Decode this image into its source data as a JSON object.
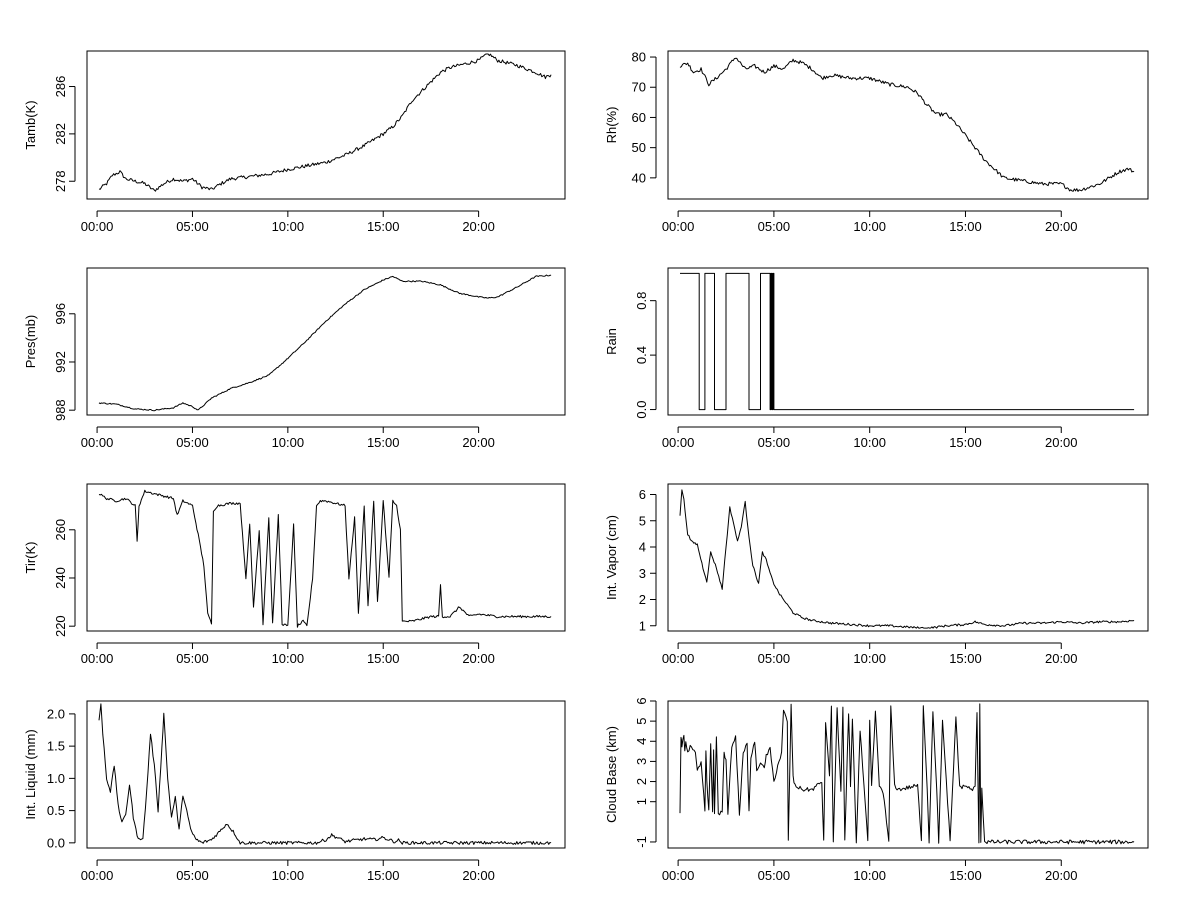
{
  "chart_data": [
    {
      "type": "line",
      "ylabel": "Tamb(K)",
      "xlim": [
        0,
        24
      ],
      "ylim": [
        276.5,
        289.0
      ],
      "x_ticks": [
        0,
        5,
        10,
        15,
        20
      ],
      "x_tick_labels": [
        "00:00",
        "05:00",
        "10:00",
        "15:00",
        "20:00"
      ],
      "y_ticks": [
        278,
        282,
        286
      ],
      "y_tick_labels": [
        "278",
        "282",
        "286"
      ],
      "y_labels_rotated": true,
      "noise": 0.15,
      "x": [
        0.1,
        0.5,
        0.8,
        1.2,
        1.5,
        2.0,
        2.5,
        3.0,
        3.5,
        4.0,
        4.5,
        5.0,
        5.5,
        6.0,
        6.5,
        7.0,
        8.0,
        9.0,
        10.0,
        11.0,
        12.0,
        13.0,
        14.0,
        15.0,
        15.5,
        16.0,
        16.5,
        17.0,
        17.5,
        18.0,
        18.5,
        19.0,
        19.5,
        20.0,
        20.5,
        21.0,
        21.5,
        22.0,
        22.5,
        23.0,
        23.5,
        23.8
      ],
      "y": [
        277.3,
        277.8,
        278.5,
        278.8,
        278.2,
        278.0,
        277.8,
        277.2,
        277.8,
        278.2,
        278.0,
        278.2,
        277.5,
        277.3,
        277.8,
        278.2,
        278.4,
        278.6,
        279.0,
        279.3,
        279.6,
        280.2,
        281.0,
        282.0,
        282.6,
        283.5,
        284.8,
        285.6,
        286.4,
        287.2,
        287.6,
        287.8,
        288.0,
        288.2,
        288.8,
        288.2,
        288.0,
        287.8,
        287.5,
        287.2,
        286.8,
        287.0
      ]
    },
    {
      "type": "line",
      "ylabel": "Rh(%)",
      "xlim": [
        0,
        24
      ],
      "ylim": [
        33,
        82
      ],
      "x_ticks": [
        0,
        5,
        10,
        15,
        20
      ],
      "x_tick_labels": [
        "00:00",
        "05:00",
        "10:00",
        "15:00",
        "20:00"
      ],
      "y_ticks": [
        40,
        50,
        60,
        70,
        80
      ],
      "y_tick_labels": [
        "40",
        "50",
        "60",
        "70",
        "80"
      ],
      "y_labels_rotated": false,
      "noise": 0.6,
      "x": [
        0.1,
        0.5,
        0.8,
        1.2,
        1.6,
        2.0,
        2.5,
        3.0,
        3.5,
        4.0,
        4.5,
        5.0,
        5.5,
        6.0,
        6.5,
        7.0,
        7.5,
        8.0,
        9.0,
        10.0,
        11.0,
        12.0,
        12.5,
        13.0,
        13.5,
        14.0,
        14.5,
        15.0,
        15.5,
        16.0,
        16.5,
        17.0,
        18.0,
        19.0,
        20.0,
        20.5,
        21.0,
        21.5,
        22.0,
        22.5,
        23.0,
        23.5,
        23.8
      ],
      "y": [
        77,
        78,
        75,
        76,
        71,
        73,
        76,
        80,
        76,
        77,
        75,
        77,
        76,
        79,
        78,
        76,
        73,
        74,
        73,
        73,
        71,
        70,
        68,
        64,
        61,
        61,
        58,
        54,
        50,
        46,
        43,
        40,
        39,
        38,
        38,
        36,
        36,
        37,
        38,
        40,
        42,
        43,
        42
      ]
    },
    {
      "type": "line",
      "ylabel": "Pres(mb)",
      "xlim": [
        0,
        24
      ],
      "ylim": [
        987.6,
        999.8
      ],
      "x_ticks": [
        0,
        5,
        10,
        15,
        20
      ],
      "x_tick_labels": [
        "00:00",
        "05:00",
        "10:00",
        "15:00",
        "20:00"
      ],
      "y_ticks": [
        988,
        992,
        996
      ],
      "y_tick_labels": [
        "988",
        "992",
        "996"
      ],
      "y_labels_rotated": true,
      "noise": 0.05,
      "x": [
        0.1,
        1.0,
        2.0,
        3.0,
        4.0,
        4.5,
        5.0,
        5.3,
        6.0,
        7.0,
        8.0,
        9.0,
        10.0,
        11.0,
        12.0,
        13.0,
        14.0,
        15.0,
        15.5,
        16.0,
        17.0,
        18.0,
        19.0,
        20.0,
        20.5,
        21.0,
        22.0,
        23.0,
        23.8
      ],
      "y": [
        988.6,
        988.5,
        988.1,
        988.0,
        988.2,
        988.6,
        988.3,
        988.0,
        989.0,
        989.8,
        990.3,
        990.9,
        992.3,
        993.8,
        995.4,
        996.8,
        998.0,
        998.8,
        999.1,
        998.7,
        998.7,
        998.4,
        997.7,
        997.4,
        997.3,
        997.4,
        998.2,
        999.1,
        999.2
      ]
    },
    {
      "type": "line",
      "ylabel": "Rain",
      "xlim": [
        0,
        24
      ],
      "ylim": [
        -0.04,
        1.04
      ],
      "x_ticks": [
        0,
        5,
        10,
        15,
        20
      ],
      "x_tick_labels": [
        "00:00",
        "05:00",
        "10:00",
        "15:00",
        "20:00"
      ],
      "y_ticks": [
        0.0,
        0.4,
        0.8
      ],
      "y_tick_labels": [
        "0.0",
        "0.4",
        "0.8"
      ],
      "y_labels_rotated": true,
      "noise": 0,
      "x": [
        0.1,
        1.1,
        1.1,
        1.4,
        1.4,
        1.9,
        1.9,
        2.5,
        2.5,
        3.7,
        3.7,
        4.3,
        4.3,
        4.8,
        4.8,
        4.85,
        4.85,
        4.9,
        4.9,
        4.95,
        4.95,
        5.0,
        5.0,
        23.8
      ],
      "y": [
        1,
        1,
        0,
        0,
        1,
        1,
        0,
        0,
        1,
        1,
        0,
        0,
        1,
        1,
        0,
        0,
        1,
        1,
        0,
        0,
        1,
        1,
        0,
        0
      ]
    },
    {
      "type": "line",
      "ylabel": "Tir(K)",
      "xlim": [
        0,
        24
      ],
      "ylim": [
        218,
        279
      ],
      "x_ticks": [
        0,
        5,
        10,
        15,
        20
      ],
      "x_tick_labels": [
        "00:00",
        "05:00",
        "10:00",
        "15:00",
        "20:00"
      ],
      "y_ticks": [
        220,
        240,
        260
      ],
      "y_tick_labels": [
        "220",
        "240",
        "260"
      ],
      "y_labels_rotated": true,
      "noise": 0.5,
      "x": [
        0.1,
        0.5,
        1.0,
        1.5,
        2.0,
        2.1,
        2.2,
        2.5,
        3.0,
        3.5,
        4.0,
        4.2,
        4.5,
        5.0,
        5.3,
        5.6,
        5.8,
        6.0,
        6.1,
        6.3,
        7.0,
        7.5,
        7.8,
        8.0,
        8.2,
        8.5,
        8.7,
        9.0,
        9.2,
        9.5,
        9.7,
        10.0,
        10.3,
        10.5,
        10.8,
        11.0,
        11.3,
        11.5,
        11.7,
        12.0,
        12.5,
        13.0,
        13.2,
        13.5,
        13.7,
        14.0,
        14.2,
        14.5,
        14.7,
        15.0,
        15.3,
        15.5,
        15.7,
        15.9,
        16.0,
        16.5,
        17.0,
        17.5,
        17.9,
        18.0,
        18.1,
        18.5,
        19.0,
        19.5,
        20.0,
        21.0,
        22.0,
        23.0,
        23.8
      ],
      "y": [
        275,
        273,
        272,
        273,
        270,
        255,
        270,
        276,
        275,
        274,
        273,
        266,
        272,
        270,
        258,
        245,
        225,
        221,
        268,
        270,
        271,
        271,
        240,
        262,
        228,
        260,
        221,
        265,
        221,
        266,
        221,
        220,
        262,
        220,
        222,
        220,
        240,
        270,
        272,
        272,
        271,
        270,
        240,
        265,
        225,
        270,
        228,
        272,
        230,
        272,
        240,
        272,
        270,
        260,
        222,
        222,
        223,
        224,
        224,
        237,
        224,
        224,
        228,
        224,
        225,
        224,
        224,
        224,
        224
      ]
    },
    {
      "type": "line",
      "ylabel": "Int. Vapor (cm)",
      "xlim": [
        0,
        24
      ],
      "ylim": [
        0.8,
        6.4
      ],
      "x_ticks": [
        0,
        5,
        10,
        15,
        20
      ],
      "x_tick_labels": [
        "00:00",
        "05:00",
        "10:00",
        "15:00",
        "20:00"
      ],
      "y_ticks": [
        1,
        2,
        3,
        4,
        5,
        6
      ],
      "y_tick_labels": [
        "1",
        "2",
        "3",
        "4",
        "5",
        "6"
      ],
      "y_labels_rotated": false,
      "noise": 0.04,
      "x": [
        0.1,
        0.2,
        0.3,
        0.5,
        0.7,
        1.0,
        1.3,
        1.5,
        1.7,
        2.0,
        2.3,
        2.5,
        2.7,
        2.9,
        3.1,
        3.3,
        3.5,
        3.7,
        3.9,
        4.2,
        4.4,
        4.6,
        4.8,
        5.0,
        5.3,
        5.7,
        6.0,
        6.5,
        7.0,
        8.0,
        9.0,
        10.0,
        11.0,
        12.0,
        13.0,
        14.0,
        15.0,
        15.5,
        16.0,
        17.0,
        18.0,
        19.0,
        20.0,
        21.0,
        22.0,
        23.0,
        23.8
      ],
      "y": [
        5.2,
        6.2,
        5.8,
        4.5,
        4.2,
        4.1,
        3.2,
        2.7,
        3.8,
        3.2,
        2.4,
        4.0,
        5.5,
        4.9,
        4.2,
        4.8,
        5.7,
        4.4,
        3.3,
        2.6,
        3.8,
        3.5,
        3.0,
        2.6,
        2.2,
        1.8,
        1.5,
        1.3,
        1.2,
        1.1,
        1.05,
        1.0,
        1.0,
        0.95,
        0.9,
        1.0,
        1.05,
        1.15,
        1.05,
        1.0,
        1.1,
        1.1,
        1.15,
        1.1,
        1.15,
        1.15,
        1.2
      ]
    },
    {
      "type": "line",
      "ylabel": "Int. Liquid (mm)",
      "xlim": [
        0,
        24
      ],
      "ylim": [
        -0.08,
        2.2
      ],
      "x_ticks": [
        0,
        5,
        10,
        15,
        20
      ],
      "x_tick_labels": [
        "00:00",
        "05:00",
        "10:00",
        "15:00",
        "20:00"
      ],
      "y_ticks": [
        0.0,
        0.5,
        1.0,
        1.5,
        2.0
      ],
      "y_tick_labels": [
        "0.0",
        "0.5",
        "1.0",
        "1.5",
        "2.0"
      ],
      "y_labels_rotated": false,
      "noise": 0.025,
      "x": [
        0.1,
        0.2,
        0.3,
        0.5,
        0.7,
        0.9,
        1.1,
        1.3,
        1.5,
        1.7,
        1.9,
        2.1,
        2.4,
        2.6,
        2.8,
        3.0,
        3.2,
        3.4,
        3.5,
        3.7,
        3.9,
        4.1,
        4.3,
        4.5,
        4.7,
        4.9,
        5.2,
        5.5,
        6.0,
        6.5,
        6.8,
        7.2,
        7.5,
        8.0,
        9.0,
        10.0,
        11.0,
        11.5,
        12.0,
        12.3,
        12.6,
        13.0,
        13.5,
        14.0,
        14.5,
        15.0,
        15.3,
        15.6,
        15.8,
        16.0,
        17.0,
        18.0,
        20.0,
        22.0,
        23.8
      ],
      "y": [
        1.9,
        2.15,
        1.7,
        1.0,
        0.8,
        1.2,
        0.6,
        0.3,
        0.45,
        0.9,
        0.4,
        0.1,
        0.05,
        0.8,
        1.7,
        1.2,
        0.5,
        1.5,
        2.0,
        1.0,
        0.4,
        0.7,
        0.2,
        0.75,
        0.5,
        0.2,
        0.05,
        0.0,
        0.05,
        0.2,
        0.3,
        0.15,
        0.0,
        0.0,
        0.0,
        0.0,
        0.0,
        0.0,
        0.05,
        0.12,
        0.08,
        0.02,
        0.04,
        0.06,
        0.05,
        0.08,
        0.05,
        0.02,
        0.04,
        0.0,
        0.0,
        0.0,
        0.0,
        0.0,
        0.0
      ]
    },
    {
      "type": "line",
      "ylabel": "Cloud Base (km)",
      "xlim": [
        0,
        24
      ],
      "ylim": [
        -1.3,
        6.0
      ],
      "x_ticks": [
        0,
        5,
        10,
        15,
        20
      ],
      "x_tick_labels": [
        "00:00",
        "05:00",
        "10:00",
        "15:00",
        "20:00"
      ],
      "y_ticks": [
        -1,
        1,
        2,
        3,
        4,
        5,
        6
      ],
      "y_tick_labels": [
        "-1",
        "1",
        "2",
        "3",
        "4",
        "5",
        "6"
      ],
      "y_labels_rotated": true,
      "noise": 0.1,
      "x": [
        0.1,
        0.15,
        0.2,
        0.3,
        0.35,
        0.4,
        0.5,
        0.7,
        0.9,
        1.0,
        1.2,
        1.4,
        1.45,
        1.5,
        1.6,
        1.7,
        1.8,
        1.85,
        1.9,
        2.0,
        2.1,
        2.3,
        2.4,
        2.5,
        2.6,
        2.8,
        3.0,
        3.2,
        3.4,
        3.6,
        3.7,
        3.8,
        4.0,
        4.1,
        4.3,
        4.5,
        4.6,
        4.8,
        5.0,
        5.2,
        5.4,
        5.5,
        5.7,
        5.75,
        5.9,
        6.0,
        6.1,
        6.5,
        7.0,
        7.5,
        7.6,
        7.7,
        7.9,
        8.0,
        8.1,
        8.3,
        8.5,
        8.6,
        8.7,
        8.9,
        9.0,
        9.1,
        9.3,
        9.5,
        9.7,
        9.9,
        10.0,
        10.1,
        10.3,
        10.5,
        10.7,
        11.0,
        11.1,
        11.3,
        11.5,
        12.0,
        12.5,
        12.7,
        12.8,
        13.0,
        13.1,
        13.3,
        13.5,
        13.6,
        13.8,
        14.0,
        14.2,
        14.5,
        14.7,
        15.0,
        15.3,
        15.5,
        15.6,
        15.7,
        15.75,
        15.8,
        15.85,
        16.0,
        17.0,
        18.0,
        20.0,
        22.0,
        23.8
      ],
      "y": [
        0.5,
        4.2,
        3.8,
        4.2,
        3.5,
        4.0,
        3.5,
        3.8,
        3.4,
        2.5,
        3.0,
        0.5,
        3.5,
        2.0,
        0.5,
        3.8,
        0.5,
        3.6,
        0.5,
        4.2,
        0.4,
        0.5,
        3.5,
        3.0,
        0.4,
        3.8,
        4.2,
        0.4,
        3.5,
        3.8,
        0.5,
        3.2,
        4.0,
        2.5,
        3.0,
        2.6,
        3.3,
        3.6,
        2.0,
        2.8,
        3.4,
        5.5,
        5.0,
        -1.0,
        5.8,
        2.2,
        1.8,
        1.6,
        1.6,
        2.0,
        -1.0,
        5.0,
        2.2,
        5.8,
        -1.0,
        5.6,
        1.5,
        5.7,
        -1.0,
        5.4,
        1.8,
        5.2,
        -1.0,
        4.5,
        1.8,
        -1.0,
        5.0,
        1.8,
        5.5,
        1.8,
        1.5,
        -1.0,
        5.8,
        1.8,
        1.6,
        1.7,
        1.8,
        -1.0,
        5.8,
        1.7,
        -1.0,
        5.5,
        1.6,
        -1.0,
        5.0,
        2.0,
        -1.0,
        5.2,
        1.7,
        1.8,
        1.6,
        1.7,
        5.4,
        -1.0,
        5.8,
        -1.0,
        1.7,
        -1.0,
        -1.0,
        -1.0,
        -1.0,
        -1.0,
        -1.0
      ]
    }
  ]
}
